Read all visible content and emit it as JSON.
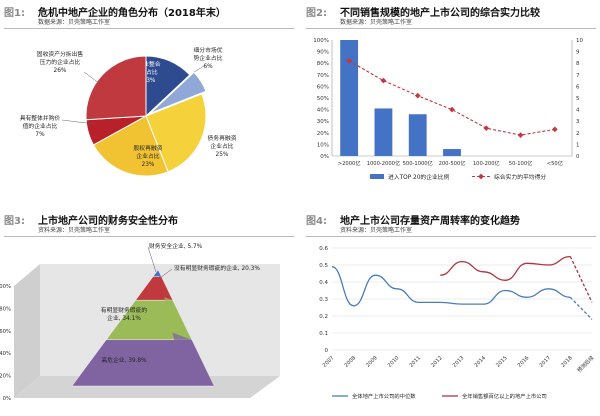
{
  "chart_data": [
    {
      "type": "pie",
      "figure_label": "图1:",
      "title": "危机中地产企业的角色分布（2018年末）",
      "source": "数据来源：贝壳策略工作室",
      "slices": [
        {
          "label": "行业整合者占比",
          "value": 13,
          "display": "13%",
          "color": "#2d4b8e"
        },
        {
          "label": "细分市场优势企业占比",
          "value": 6,
          "display": "6%",
          "color": "#8fa8d8"
        },
        {
          "label": "债务再融资企业占比",
          "value": 25,
          "display": "25%",
          "color": "#f5d23c"
        },
        {
          "label": "股权再融资企业占比",
          "value": 23,
          "display": "23%",
          "color": "#f1c232"
        },
        {
          "label": "具有整体并购价值的企业占比",
          "value": 7,
          "display": "7%",
          "color": "#b8202a"
        },
        {
          "label": "固收资产分拆出售压力的企业占比",
          "value": 26,
          "display": "26%",
          "color": "#c0393f"
        }
      ],
      "label_lines": {
        "s0": [
          "行业整合",
          "者占比",
          "13%"
        ],
        "s1": [
          "细分市场优",
          "势企业占比",
          "6%"
        ],
        "s2": [
          "债务再融资",
          "企业占比",
          "25%"
        ],
        "s3": [
          "股权再融资",
          "企业占比",
          "23%"
        ],
        "s4": [
          "具有整体并购价",
          "值的企业占比",
          "7%"
        ],
        "s5": [
          "固收资产分拆出售",
          "压力的企业占比",
          "26%"
        ]
      }
    },
    {
      "type": "bar",
      "figure_label": "图2:",
      "title": "不同销售规模的地产上市公司的综合实力比较",
      "source": "数据来源：贝壳策略工作室",
      "categories": [
        ">2000亿",
        "1000-2000亿",
        "500-1000亿",
        "200-500亿",
        "100-200亿",
        "50-100亿",
        "<50亿"
      ],
      "series": [
        {
          "name": "进入TOP 20的企业比例",
          "values": [
            100,
            41,
            36,
            6,
            0,
            0,
            0
          ],
          "color": "#4472c4",
          "axis": "left"
        },
        {
          "name": "综合实力的平均得分",
          "values": [
            8.2,
            6.5,
            5.2,
            4.0,
            2.4,
            1.8,
            2.3
          ],
          "color": "#c0393f",
          "axis": "right"
        }
      ],
      "yleft_ticks": [
        "0%",
        "10%",
        "20%",
        "30%",
        "40%",
        "50%",
        "60%",
        "70%",
        "80%",
        "90%",
        "100%"
      ],
      "yright_ticks": [
        "0",
        "1",
        "2",
        "3",
        "4",
        "5",
        "6",
        "7",
        "8",
        "9",
        "10"
      ],
      "ylim_left": [
        0,
        100
      ],
      "ylim_right": [
        0,
        10
      ]
    },
    {
      "type": "pyramid",
      "figure_label": "图3:",
      "title": "上市地产公司的财务安全性分布",
      "source": "资料来源：贝壳策略工作室",
      "yticks": [
        "0%",
        "20%",
        "40%",
        "60%",
        "80%",
        "100%"
      ],
      "layers": [
        {
          "label": "财务安全企业, 5.7%",
          "value": 5.7,
          "color": "#4472c4"
        },
        {
          "label": "没有明显财务瑕疵的企业, 20.3%",
          "value": 20.3,
          "color": "#c0393f"
        },
        {
          "label": "有明显财务瑕疵的企业, 34.1%",
          "value": 34.1,
          "color": "#9bbb59"
        },
        {
          "label": "高危企业, 39.8%",
          "value": 39.8,
          "color": "#8064a2"
        }
      ]
    },
    {
      "type": "line",
      "figure_label": "图4:",
      "title": "地产上市公司存量资产周转率的变化趋势",
      "source": "资料来源：贝壳策略工作室",
      "x": [
        "2007",
        "2008",
        "2009",
        "2010",
        "2011",
        "2012",
        "2013",
        "2014",
        "2015",
        "2016",
        "2017",
        "2018",
        "预测后续"
      ],
      "series": [
        {
          "name": "全体地产上市公司的中位数",
          "color": "#4a7db8",
          "values": [
            0.49,
            0.26,
            0.44,
            0.36,
            0.28,
            0.28,
            0.27,
            0.27,
            0.35,
            0.31,
            0.36,
            0.31,
            null
          ]
        },
        {
          "name": "全年销售额百亿以上的地产上市公司",
          "color": "#b0343c",
          "values": [
            null,
            null,
            null,
            null,
            null,
            0.44,
            0.52,
            0.46,
            0.41,
            0.51,
            0.5,
            0.55,
            null
          ]
        }
      ],
      "forecast": [
        {
          "series": 0,
          "from": 11,
          "to": 12,
          "from_value": 0.31,
          "to_value": 0.18
        },
        {
          "series": 1,
          "from": 11,
          "to": 12,
          "from_value": 0.55,
          "to_value": 0.28
        }
      ],
      "yticks": [
        "0",
        "0.1",
        "0.2",
        "0.3",
        "0.4",
        "0.5",
        "0.6"
      ],
      "ylim": [
        0,
        0.6
      ]
    }
  ]
}
